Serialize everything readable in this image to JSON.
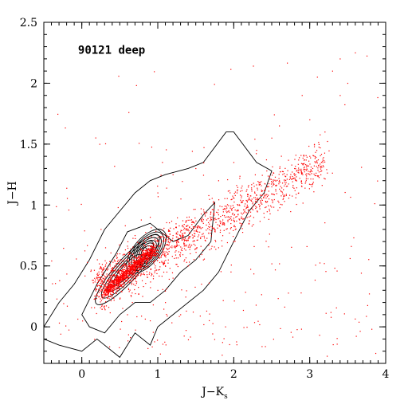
{
  "chart_data": {
    "type": "scatter",
    "title": "",
    "annotation": "90121 deep",
    "xlabel": {
      "main": "J−K",
      "sub": "s"
    },
    "ylabel": "J−H",
    "xlim": [
      -0.5,
      4.0
    ],
    "ylim": [
      -0.3,
      2.5
    ],
    "xticks": [
      0,
      1,
      2,
      3,
      4
    ],
    "xtick_labels": [
      "0",
      "1",
      "2",
      "3",
      "4"
    ],
    "yticks": [
      0,
      0.5,
      1,
      1.5,
      2,
      2.5
    ],
    "ytick_labels": [
      "0",
      "0.5",
      "1",
      "1.5",
      "2",
      "2.5"
    ],
    "grid": false,
    "colors": {
      "points": "#ff0000",
      "contours": "#000000",
      "axes": "#000000"
    },
    "series": [
      {
        "kind": "points",
        "description_of_distribution": "dense diagonal ridge",
        "points": [
          [
            0.35,
            0.3
          ],
          [
            0.42,
            0.34
          ],
          [
            0.5,
            0.38
          ],
          [
            0.55,
            0.42
          ],
          [
            0.6,
            0.46
          ],
          [
            0.65,
            0.5
          ],
          [
            0.7,
            0.53
          ],
          [
            0.75,
            0.57
          ],
          [
            0.8,
            0.6
          ],
          [
            0.85,
            0.63
          ],
          [
            0.9,
            0.66
          ],
          [
            0.95,
            0.68
          ],
          [
            1.0,
            0.7
          ],
          [
            1.1,
            0.72
          ],
          [
            1.2,
            0.75
          ],
          [
            1.3,
            0.78
          ],
          [
            1.4,
            0.8
          ],
          [
            1.5,
            0.82
          ],
          [
            1.6,
            0.85
          ],
          [
            1.7,
            0.88
          ],
          [
            1.8,
            0.92
          ],
          [
            1.9,
            0.95
          ],
          [
            2.0,
            0.98
          ],
          [
            2.1,
            1.02
          ],
          [
            2.2,
            1.05
          ],
          [
            2.3,
            1.08
          ],
          [
            2.4,
            1.12
          ],
          [
            2.5,
            1.15
          ],
          [
            2.6,
            1.2
          ],
          [
            2.7,
            1.25
          ],
          [
            2.8,
            1.3
          ],
          [
            3.0,
            1.4
          ],
          [
            3.2,
            1.6
          ],
          [
            3.4,
            1.9
          ],
          [
            3.5,
            2.0
          ],
          [
            3.6,
            2.25
          ],
          [
            0.8,
            0.25
          ],
          [
            1.0,
            0.3
          ],
          [
            1.2,
            0.4
          ],
          [
            1.4,
            0.5
          ],
          [
            1.6,
            0.55
          ],
          [
            1.8,
            0.65
          ],
          [
            2.0,
            0.7
          ],
          [
            2.2,
            0.85
          ],
          [
            2.4,
            0.9
          ],
          [
            1.0,
            1.1
          ],
          [
            1.2,
            1.25
          ],
          [
            1.5,
            1.3
          ],
          [
            1.8,
            1.2
          ],
          [
            2.0,
            1.35
          ],
          [
            2.3,
            1.45
          ],
          [
            2.5,
            1.55
          ],
          [
            0.3,
            0.15
          ],
          [
            0.6,
            0.1
          ],
          [
            0.9,
            0.05
          ],
          [
            1.1,
            0.2
          ],
          [
            1.3,
            0.1
          ],
          [
            0.5,
            0.6
          ],
          [
            0.7,
            0.75
          ],
          [
            0.9,
            0.9
          ],
          [
            3.0,
            1.7
          ],
          [
            3.3,
            2.1
          ],
          [
            2.6,
            1.65
          ],
          [
            2.9,
            1.9
          ],
          [
            3.1,
            2.05
          ],
          [
            3.4,
            2.2
          ]
        ]
      }
    ],
    "contour_centers": [
      {
        "x": 0.85,
        "y": 0.62,
        "levels": 7
      },
      {
        "x": 0.45,
        "y": 0.35,
        "levels": 4
      }
    ]
  }
}
